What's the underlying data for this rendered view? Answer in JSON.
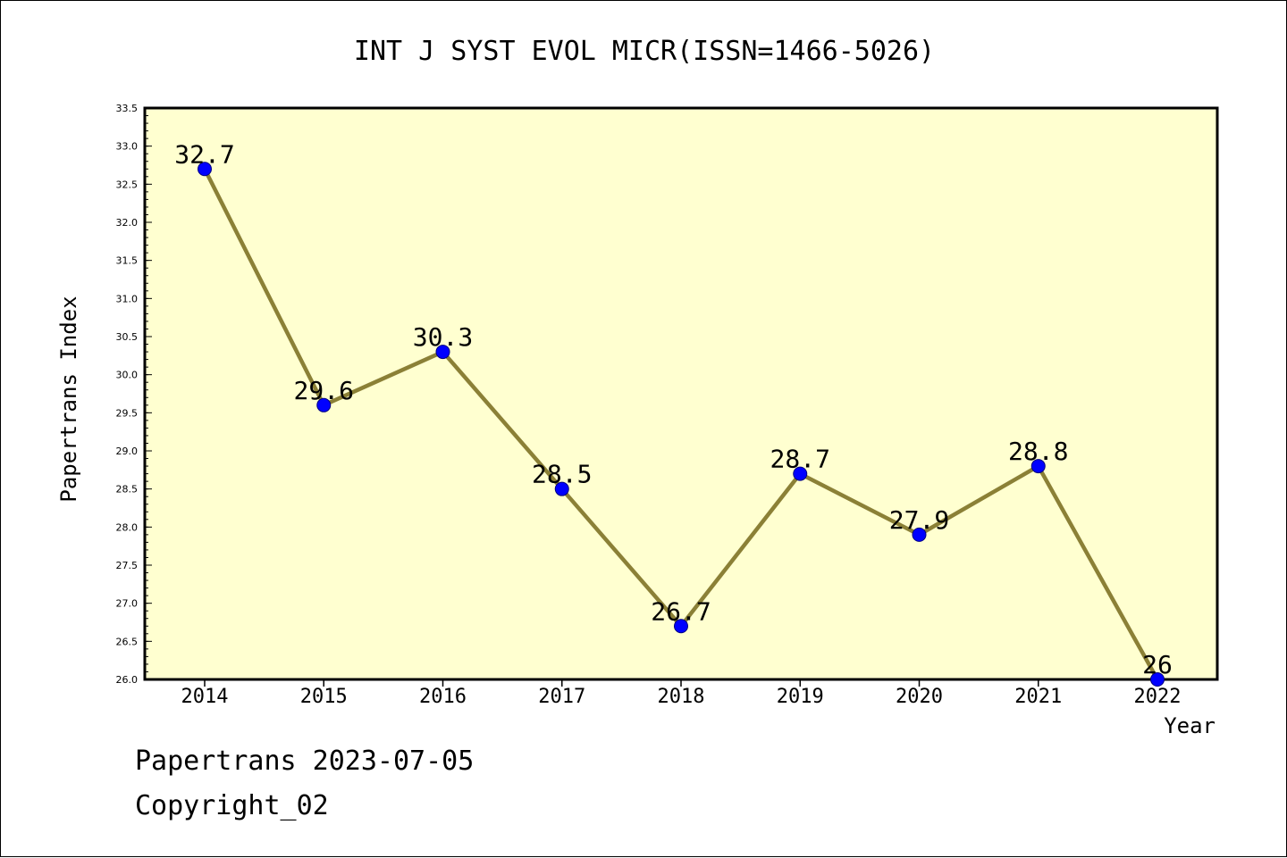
{
  "chart_data": {
    "type": "line",
    "title": "INT J SYST EVOL MICR(ISSN=1466-5026)",
    "xlabel": "Year",
    "ylabel": "Papertrans Index",
    "categories": [
      "2014",
      "2015",
      "2016",
      "2017",
      "2018",
      "2019",
      "2020",
      "2021",
      "2022"
    ],
    "values": [
      32.7,
      29.6,
      30.3,
      28.5,
      26.7,
      28.7,
      27.9,
      28.8,
      26
    ],
    "data_labels": [
      "32.7",
      "29.6",
      "30.3",
      "28.5",
      "26.7",
      "28.7",
      "27.9",
      "28.8",
      "26"
    ],
    "ylim": [
      26.0,
      33.5
    ],
    "yticks": [
      "26.0",
      "26.5",
      "27.0",
      "27.5",
      "28.0",
      "28.5",
      "29.0",
      "29.5",
      "30.0",
      "30.5",
      "31.0",
      "31.5",
      "32.0",
      "32.5",
      "33.0",
      "33.5"
    ],
    "grid": false,
    "colors": {
      "plot_background": "#ffffd0",
      "line": "#8b8036",
      "marker": "#0000ff",
      "marker_edge": "#000080",
      "text": "#000000"
    }
  },
  "footer": {
    "date_line": "Papertrans 2023-07-05",
    "copyright": "Copyright_02"
  }
}
